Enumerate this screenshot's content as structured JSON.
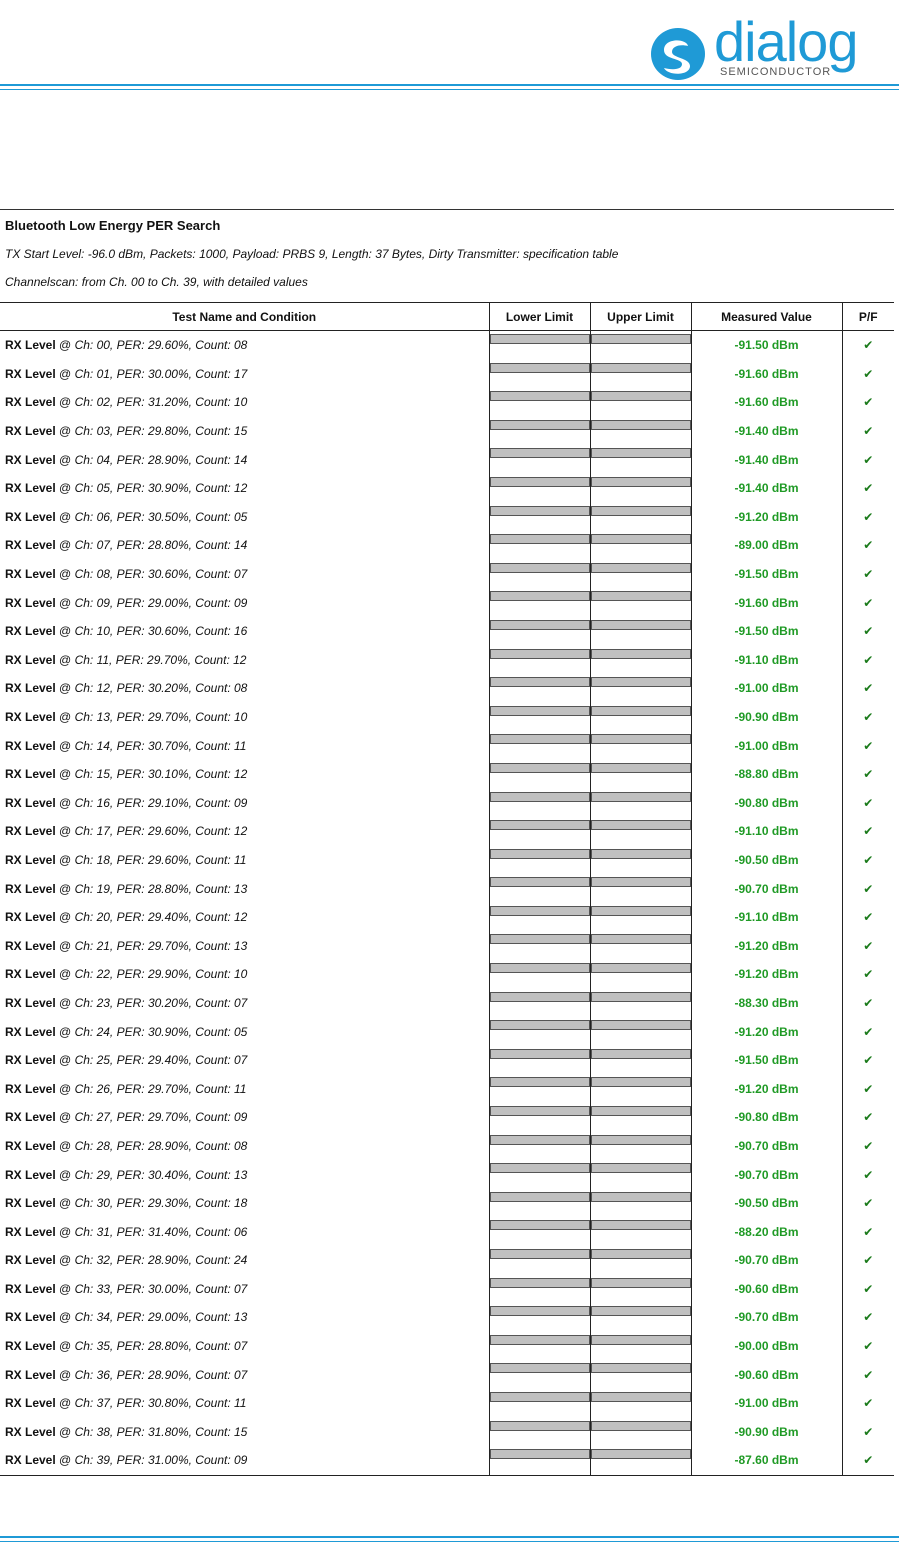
{
  "header": {
    "logo_text": "dialog",
    "logo_subtext": "SEMICONDUCTOR",
    "brand_color": "#1f9ad6"
  },
  "section": {
    "title": "Bluetooth Low Energy PER Search",
    "line1": "TX Start Level: -96.0 dBm, Packets: 1000, Payload: PRBS 9, Length: 37 Bytes, Dirty Transmitter: specification table",
    "line2": "Channelscan: from Ch. 00 to Ch. 39, with detailed values"
  },
  "table": {
    "columns": [
      "Test Name and Condition",
      "Lower Limit",
      "Upper Limit",
      "Measured Value",
      "P/F"
    ],
    "row_prefix": "RX Level",
    "row_at": "@",
    "pass_icon": "check-icon",
    "value_color": "#1f9a25",
    "rows": [
      {
        "cond": "Ch: 00, PER: 29.60%, Count: 08",
        "value": "-91.50 dBm",
        "pf": "✔"
      },
      {
        "cond": "Ch: 01, PER: 30.00%, Count: 17",
        "value": "-91.60 dBm",
        "pf": "✔"
      },
      {
        "cond": "Ch: 02, PER: 31.20%, Count: 10",
        "value": "-91.60 dBm",
        "pf": "✔"
      },
      {
        "cond": "Ch: 03, PER: 29.80%, Count: 15",
        "value": "-91.40 dBm",
        "pf": "✔"
      },
      {
        "cond": "Ch: 04, PER: 28.90%, Count: 14",
        "value": "-91.40 dBm",
        "pf": "✔"
      },
      {
        "cond": "Ch: 05, PER: 30.90%, Count: 12",
        "value": "-91.40 dBm",
        "pf": "✔"
      },
      {
        "cond": "Ch: 06, PER: 30.50%, Count: 05",
        "value": "-91.20 dBm",
        "pf": "✔"
      },
      {
        "cond": "Ch: 07, PER: 28.80%, Count: 14",
        "value": "-89.00 dBm",
        "pf": "✔"
      },
      {
        "cond": "Ch: 08, PER: 30.60%, Count: 07",
        "value": "-91.50 dBm",
        "pf": "✔"
      },
      {
        "cond": "Ch: 09, PER: 29.00%, Count: 09",
        "value": "-91.60 dBm",
        "pf": "✔"
      },
      {
        "cond": "Ch: 10, PER: 30.60%, Count: 16",
        "value": "-91.50 dBm",
        "pf": "✔"
      },
      {
        "cond": "Ch: 11, PER: 29.70%, Count: 12",
        "value": "-91.10 dBm",
        "pf": "✔"
      },
      {
        "cond": "Ch: 12, PER: 30.20%, Count: 08",
        "value": "-91.00 dBm",
        "pf": "✔"
      },
      {
        "cond": "Ch: 13, PER: 29.70%, Count: 10",
        "value": "-90.90 dBm",
        "pf": "✔"
      },
      {
        "cond": "Ch: 14, PER: 30.70%, Count: 11",
        "value": "-91.00 dBm",
        "pf": "✔"
      },
      {
        "cond": "Ch: 15, PER: 30.10%, Count: 12",
        "value": "-88.80 dBm",
        "pf": "✔"
      },
      {
        "cond": "Ch: 16, PER: 29.10%, Count: 09",
        "value": "-90.80 dBm",
        "pf": "✔"
      },
      {
        "cond": "Ch: 17, PER: 29.60%, Count: 12",
        "value": "-91.10 dBm",
        "pf": "✔"
      },
      {
        "cond": "Ch: 18, PER: 29.60%, Count: 11",
        "value": "-90.50 dBm",
        "pf": "✔"
      },
      {
        "cond": "Ch: 19, PER: 28.80%, Count: 13",
        "value": "-90.70 dBm",
        "pf": "✔"
      },
      {
        "cond": "Ch: 20, PER: 29.40%, Count: 12",
        "value": "-91.10 dBm",
        "pf": "✔"
      },
      {
        "cond": "Ch: 21, PER: 29.70%, Count: 13",
        "value": "-91.20 dBm",
        "pf": "✔"
      },
      {
        "cond": "Ch: 22, PER: 29.90%, Count: 10",
        "value": "-91.20 dBm",
        "pf": "✔"
      },
      {
        "cond": "Ch: 23, PER: 30.20%, Count: 07",
        "value": "-88.30 dBm",
        "pf": "✔"
      },
      {
        "cond": "Ch: 24, PER: 30.90%, Count: 05",
        "value": "-91.20 dBm",
        "pf": "✔"
      },
      {
        "cond": "Ch: 25, PER: 29.40%, Count: 07",
        "value": "-91.50 dBm",
        "pf": "✔"
      },
      {
        "cond": "Ch: 26, PER: 29.70%, Count: 11",
        "value": "-91.20 dBm",
        "pf": "✔"
      },
      {
        "cond": "Ch: 27, PER: 29.70%, Count: 09",
        "value": "-90.80 dBm",
        "pf": "✔"
      },
      {
        "cond": "Ch: 28, PER: 28.90%, Count: 08",
        "value": "-90.70 dBm",
        "pf": "✔"
      },
      {
        "cond": "Ch: 29, PER: 30.40%, Count: 13",
        "value": "-90.70 dBm",
        "pf": "✔"
      },
      {
        "cond": "Ch: 30, PER: 29.30%, Count: 18",
        "value": "-90.50 dBm",
        "pf": "✔"
      },
      {
        "cond": "Ch: 31, PER: 31.40%, Count: 06",
        "value": "-88.20 dBm",
        "pf": "✔"
      },
      {
        "cond": "Ch: 32, PER: 28.90%, Count: 24",
        "value": "-90.70 dBm",
        "pf": "✔"
      },
      {
        "cond": "Ch: 33, PER: 30.00%, Count: 07",
        "value": "-90.60 dBm",
        "pf": "✔"
      },
      {
        "cond": "Ch: 34, PER: 29.00%, Count: 13",
        "value": "-90.70 dBm",
        "pf": "✔"
      },
      {
        "cond": "Ch: 35, PER: 28.80%, Count: 07",
        "value": "-90.00 dBm",
        "pf": "✔"
      },
      {
        "cond": "Ch: 36, PER: 28.90%, Count: 07",
        "value": "-90.60 dBm",
        "pf": "✔"
      },
      {
        "cond": "Ch: 37, PER: 30.80%, Count: 11",
        "value": "-91.00 dBm",
        "pf": "✔"
      },
      {
        "cond": "Ch: 38, PER: 31.80%, Count: 15",
        "value": "-90.90 dBm",
        "pf": "✔"
      },
      {
        "cond": "Ch: 39, PER: 31.00%, Count: 09",
        "value": "-87.60 dBm",
        "pf": "✔"
      }
    ]
  }
}
